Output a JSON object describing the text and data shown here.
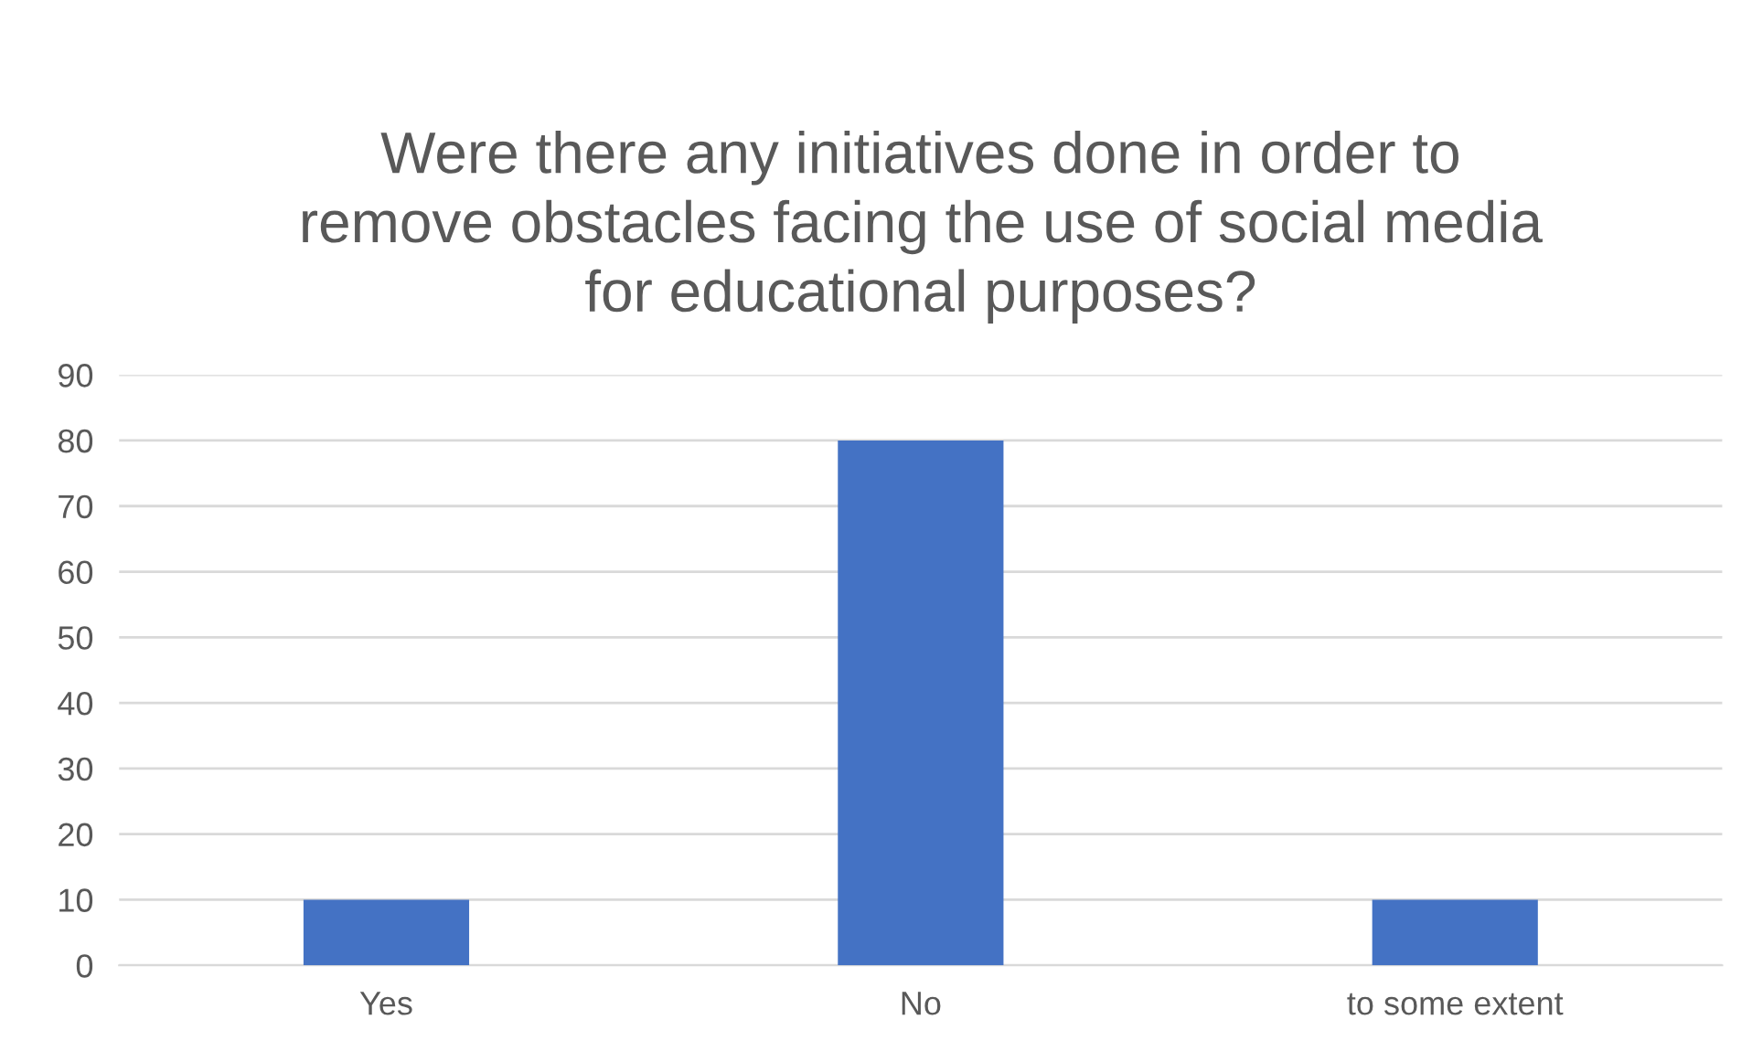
{
  "chart_data": {
    "type": "bar",
    "title": "Were there any initiatives done in order to\nremove obstacles facing the use of social media\nfor educational purposes?",
    "categories": [
      "Yes",
      "No",
      "to some extent"
    ],
    "values": [
      10,
      80,
      10
    ],
    "color": "#4472c4",
    "ylim": [
      0,
      90
    ],
    "yticks": [
      0,
      10,
      20,
      30,
      40,
      50,
      60,
      70,
      80,
      90
    ],
    "grid": "y",
    "legend": false
  }
}
